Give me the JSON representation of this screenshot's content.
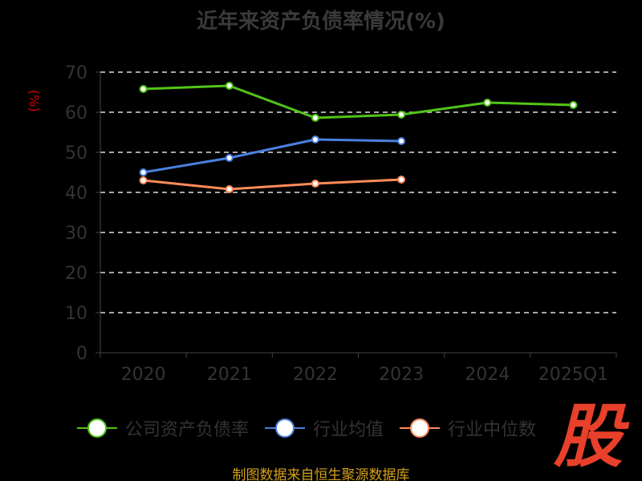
{
  "chart_data": {
    "type": "line",
    "title": "近年来资产负债率情况(%)",
    "ylabel": "(%)",
    "xlabel": "",
    "categories": [
      "2020",
      "2021",
      "2022",
      "2023",
      "2024",
      "2025Q1"
    ],
    "ylim": [
      0,
      70
    ],
    "yticks": [
      0,
      10,
      20,
      30,
      40,
      50,
      60,
      70
    ],
    "grid": true,
    "legend_position": "bottom",
    "series": [
      {
        "name": "公司资产负债率",
        "color": "#52c41a",
        "values": [
          65.8,
          66.6,
          58.6,
          59.4,
          62.4,
          61.8
        ]
      },
      {
        "name": "行业均值",
        "color": "#4a80e0",
        "values": [
          45.0,
          48.6,
          53.2,
          52.8,
          null,
          null
        ]
      },
      {
        "name": "行业中位数",
        "color": "#ff8c5a",
        "values": [
          43.0,
          40.8,
          42.2,
          43.2,
          null,
          null
        ]
      }
    ]
  },
  "footer": {
    "source": "制图数据来自恒生聚源数据库"
  },
  "logo": {
    "text": "股"
  }
}
